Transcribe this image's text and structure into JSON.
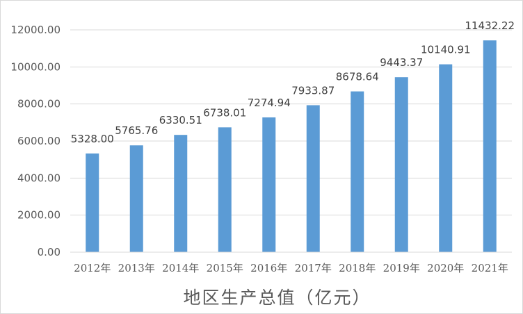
{
  "chart_data": {
    "type": "bar",
    "title": "",
    "xlabel": "地区生产总值（亿元）",
    "ylabel": "",
    "categories": [
      "2012年",
      "2013年",
      "2014年",
      "2015年",
      "2016年",
      "2017年",
      "2018年",
      "2019年",
      "2020年",
      "2021年"
    ],
    "values": [
      5328.0,
      5765.76,
      6330.51,
      6738.01,
      7274.94,
      7933.87,
      8678.64,
      9443.37,
      10140.91,
      11432.22
    ],
    "value_labels": [
      "5328.00",
      "5765.76",
      "6330.51",
      "6738.01",
      "7274.94",
      "7933.87",
      "8678.64",
      "9443.37",
      "10140.91",
      "11432.22"
    ],
    "yticks": [
      0,
      2000,
      4000,
      6000,
      8000,
      10000,
      12000
    ],
    "ytick_labels": [
      "0.00",
      "2000.00",
      "4000.00",
      "6000.00",
      "8000.00",
      "10000.00",
      "12000.00"
    ],
    "ylim": [
      0,
      12000
    ],
    "grid": true,
    "legend": "none",
    "bar_color": "#5b9bd5"
  }
}
